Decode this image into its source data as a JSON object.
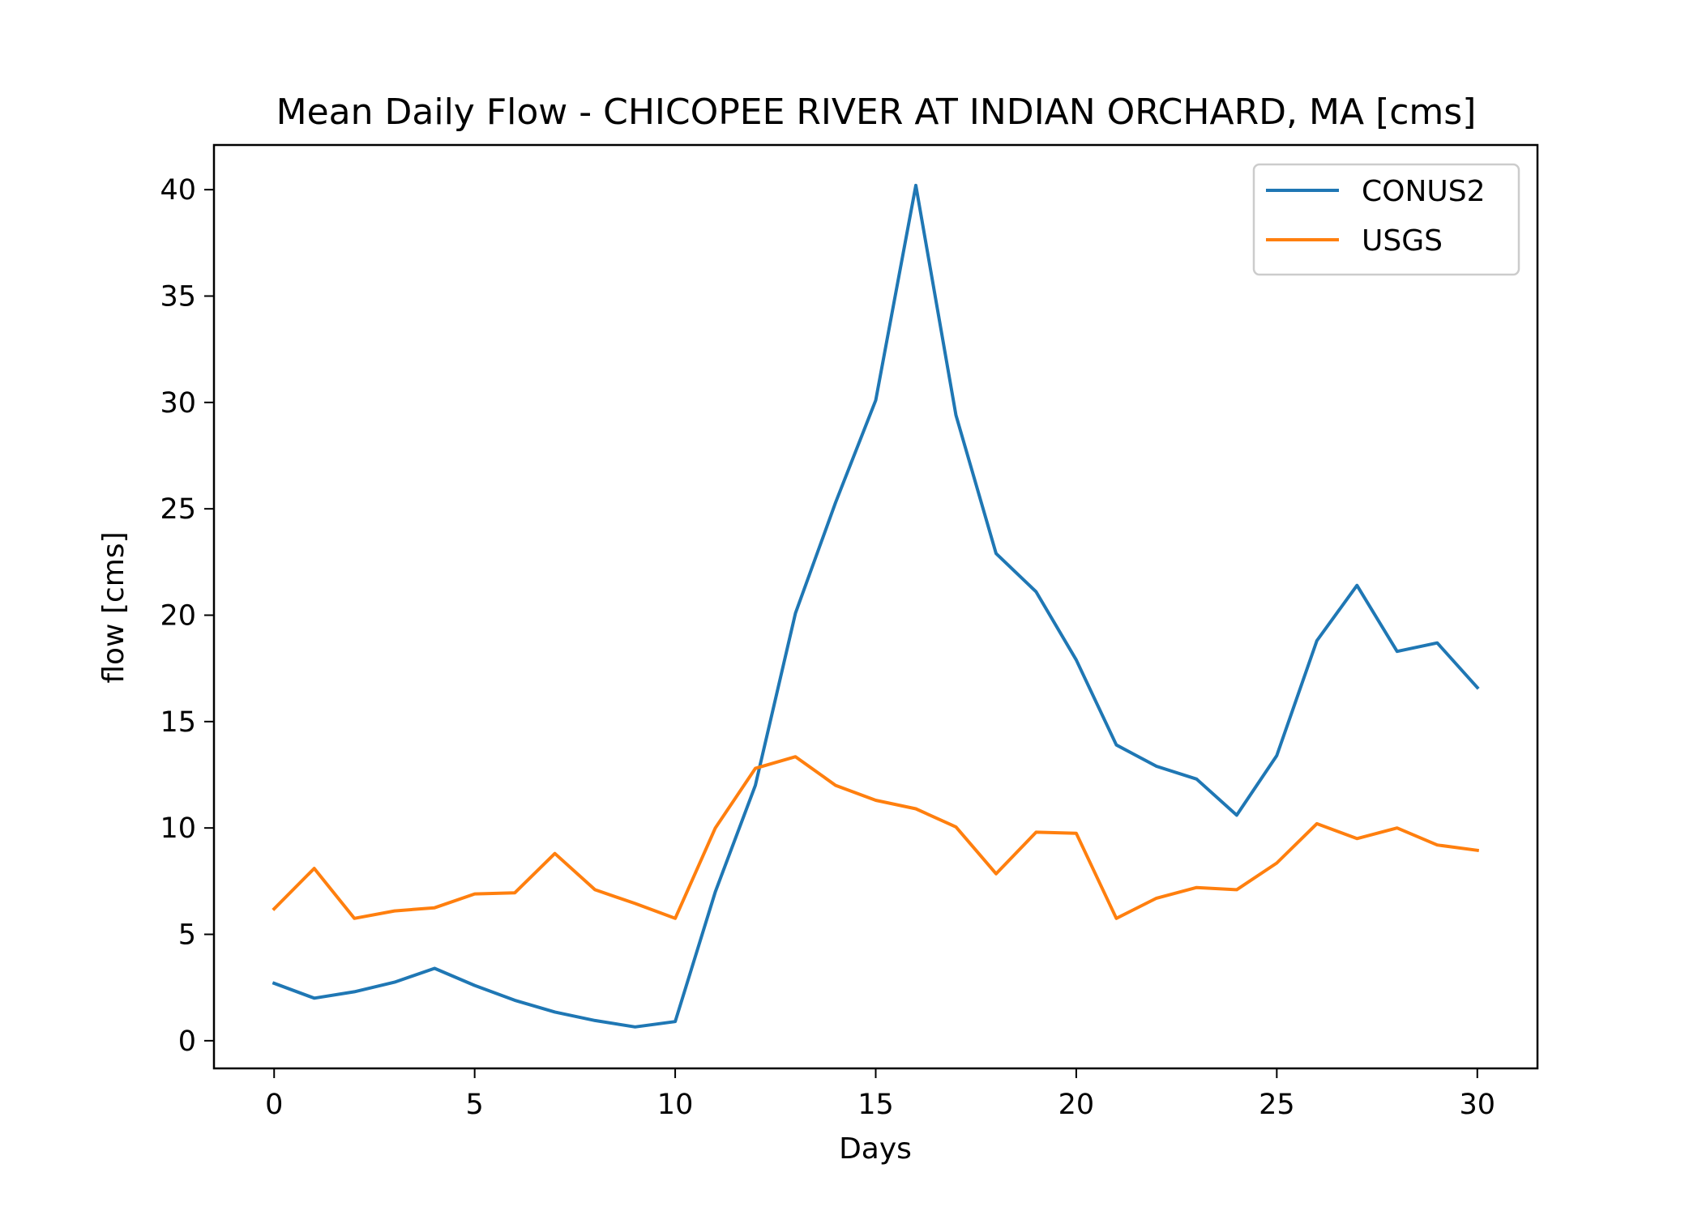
{
  "chart_data": {
    "type": "line",
    "title": "Mean Daily Flow - CHICOPEE RIVER AT INDIAN ORCHARD, MA [cms]",
    "xlabel": "Days",
    "ylabel": "flow [cms]",
    "xlim": [
      -1.5,
      31.5
    ],
    "ylim": [
      -1.3,
      42.1
    ],
    "xticks": [
      0,
      5,
      10,
      15,
      20,
      25,
      30
    ],
    "yticks": [
      0,
      5,
      10,
      15,
      20,
      25,
      30,
      35,
      40
    ],
    "grid": false,
    "legend_position": "top-right",
    "x": [
      0,
      1,
      2,
      3,
      4,
      5,
      6,
      7,
      8,
      9,
      10,
      11,
      12,
      13,
      14,
      15,
      16,
      17,
      18,
      19,
      20,
      21,
      22,
      23,
      24,
      25,
      26,
      27,
      28,
      29,
      30
    ],
    "series": [
      {
        "name": "CONUS2",
        "color": "#1f77b4",
        "values": [
          2.7,
          2.0,
          2.3,
          2.75,
          3.4,
          2.6,
          1.9,
          1.35,
          0.95,
          0.65,
          0.9,
          7.0,
          12.0,
          20.1,
          25.3,
          30.1,
          40.2,
          29.4,
          22.9,
          21.1,
          17.9,
          13.9,
          12.9,
          12.3,
          10.6,
          13.4,
          18.8,
          21.4,
          18.3,
          18.7,
          16.6
        ]
      },
      {
        "name": "USGS",
        "color": "#ff7f0e",
        "values": [
          6.2,
          8.1,
          5.75,
          6.1,
          6.25,
          6.9,
          6.95,
          8.8,
          7.1,
          6.45,
          5.75,
          10.0,
          12.8,
          13.35,
          12.0,
          11.3,
          10.9,
          10.05,
          7.85,
          9.8,
          9.75,
          5.75,
          6.7,
          7.2,
          7.1,
          8.35,
          10.2,
          9.5,
          10.0,
          9.2,
          8.95
        ]
      }
    ]
  }
}
